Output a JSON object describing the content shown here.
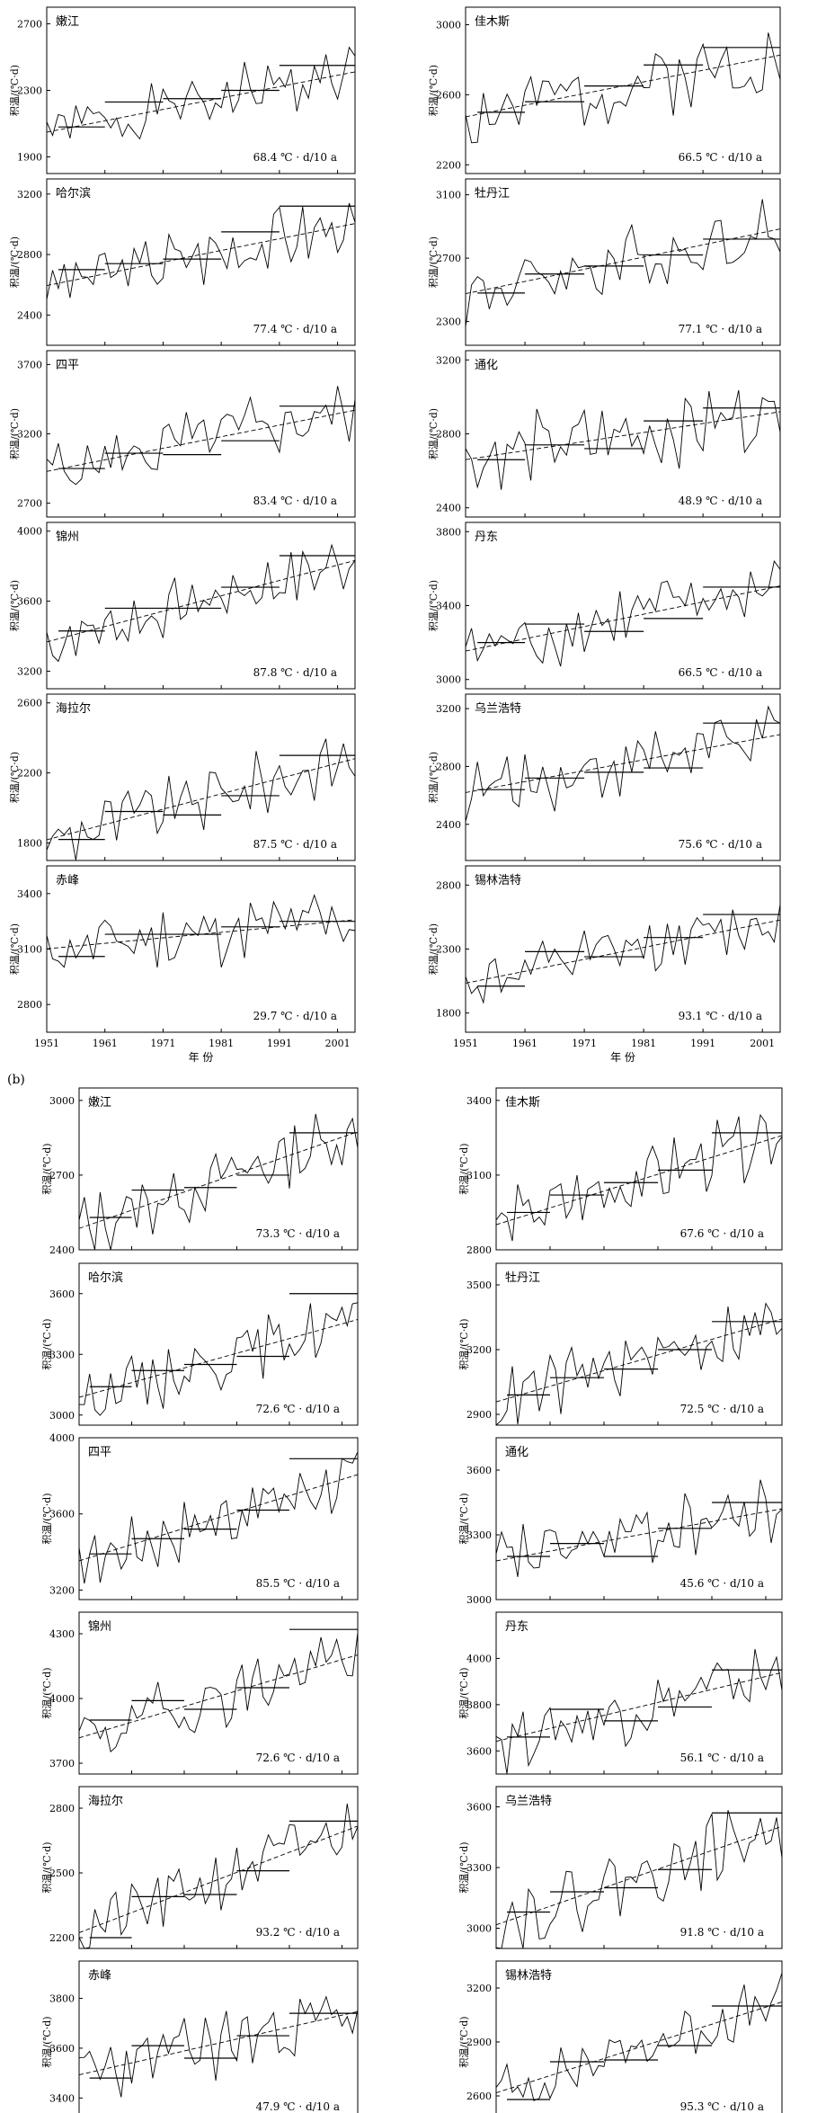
{
  "figure": {
    "panel_b_label": "(b)",
    "xlabel": "年 份",
    "ylabel": "积温/(℃·d)",
    "x_ticks": [
      1951,
      1961,
      1971,
      1981,
      1991,
      2001
    ]
  },
  "chart_data": [
    {
      "group": "a",
      "type": "line",
      "title": "嫩江",
      "trend_label": "68.4 ℃ · d/10 a",
      "ylim": [
        1800,
        2800
      ],
      "y_ticks": [
        1900,
        2300,
        2700
      ],
      "mean": 2230,
      "slope": 68.4,
      "amp": 160,
      "seed": 1,
      "decades": [
        2080,
        2230,
        2250,
        2300,
        2450
      ]
    },
    {
      "group": "a",
      "type": "line",
      "title": "佳木斯",
      "trend_label": "66.5 ℃ · d/10 a",
      "ylim": [
        2150,
        3100
      ],
      "y_ticks": [
        2200,
        2600,
        3000
      ],
      "mean": 2650,
      "slope": 66.5,
      "amp": 170,
      "seed": 2,
      "decades": [
        2500,
        2560,
        2650,
        2770,
        2870
      ]
    },
    {
      "group": "a",
      "type": "line",
      "title": "哈尔滨",
      "trend_label": "77.4 ℃ · d/10 a",
      "ylim": [
        2200,
        3300
      ],
      "y_ticks": [
        2400,
        2800,
        3200
      ],
      "mean": 2800,
      "slope": 77.4,
      "amp": 180,
      "seed": 3,
      "decades": [
        2700,
        2740,
        2770,
        2950,
        3120
      ]
    },
    {
      "group": "a",
      "type": "line",
      "title": "牡丹江",
      "trend_label": "77.1 ℃ · d/10 a",
      "ylim": [
        2150,
        3200
      ],
      "y_ticks": [
        2300,
        2700,
        3100
      ],
      "mean": 2680,
      "slope": 77.1,
      "amp": 180,
      "seed": 4,
      "decades": [
        2480,
        2600,
        2650,
        2720,
        2820
      ]
    },
    {
      "group": "a",
      "type": "line",
      "title": "四平",
      "trend_label": "83.4 ℃ · d/10 a",
      "ylim": [
        2600,
        3800
      ],
      "y_ticks": [
        2700,
        3200,
        3700
      ],
      "mean": 3150,
      "slope": 83.4,
      "amp": 200,
      "seed": 5,
      "decades": [
        2950,
        3060,
        3050,
        3150,
        3400
      ]
    },
    {
      "group": "a",
      "type": "line",
      "title": "通化",
      "trend_label": "48.9 ℃ · d/10 a",
      "ylim": [
        2350,
        3250
      ],
      "y_ticks": [
        2400,
        2800,
        3200
      ],
      "mean": 2790,
      "slope": 48.9,
      "amp": 170,
      "seed": 6,
      "decades": [
        2660,
        2740,
        2720,
        2870,
        2940
      ]
    },
    {
      "group": "a",
      "type": "line",
      "title": "锦州",
      "trend_label": "87.8 ℃ · d/10 a",
      "ylim": [
        3100,
        4050
      ],
      "y_ticks": [
        3200,
        3600,
        4000
      ],
      "mean": 3600,
      "slope": 87.8,
      "amp": 160,
      "seed": 7,
      "decades": [
        3430,
        3560,
        3560,
        3680,
        3860
      ]
    },
    {
      "group": "a",
      "type": "line",
      "title": "丹东",
      "trend_label": "66.5 ℃ · d/10 a",
      "ylim": [
        2950,
        3850
      ],
      "y_ticks": [
        3000,
        3400,
        3800
      ],
      "mean": 3330,
      "slope": 66.5,
      "amp": 160,
      "seed": 8,
      "decades": [
        3200,
        3300,
        3260,
        3330,
        3500
      ]
    },
    {
      "group": "a",
      "type": "line",
      "title": "海拉尔",
      "trend_label": "87.5 ℃ · d/10 a",
      "ylim": [
        1700,
        2650
      ],
      "y_ticks": [
        1800,
        2200,
        2600
      ],
      "mean": 2050,
      "slope": 87.5,
      "amp": 150,
      "seed": 9,
      "decades": [
        1820,
        1980,
        1960,
        2070,
        2300
      ]
    },
    {
      "group": "a",
      "type": "line",
      "title": "乌兰浩特",
      "trend_label": "75.6 ℃ · d/10 a",
      "ylim": [
        2150,
        3300
      ],
      "y_ticks": [
        2400,
        2800,
        3200
      ],
      "mean": 2820,
      "slope": 75.6,
      "amp": 190,
      "seed": 10,
      "decades": [
        2640,
        2720,
        2760,
        2790,
        3100
      ]
    },
    {
      "group": "a",
      "type": "line",
      "title": "赤峰",
      "trend_label": "29.7 ℃ · d/10 a",
      "ylim": [
        2650,
        3550
      ],
      "y_ticks": [
        2800,
        3100,
        3400
      ],
      "mean": 3180,
      "slope": 29.7,
      "amp": 160,
      "seed": 11,
      "decades": [
        3060,
        3180,
        3180,
        3220,
        3250
      ]
    },
    {
      "group": "a",
      "type": "line",
      "title": "锡林浩特",
      "trend_label": "93.1 ℃ · d/10 a",
      "ylim": [
        1650,
        2950
      ],
      "y_ticks": [
        1800,
        2300,
        2800
      ],
      "mean": 2280,
      "slope": 93.1,
      "amp": 180,
      "seed": 12,
      "decades": [
        2010,
        2280,
        2240,
        2390,
        2570
      ]
    },
    {
      "group": "b",
      "type": "line",
      "title": "嫩江",
      "trend_label": "73.3 ℃ · d/10 a",
      "ylim": [
        2400,
        3050
      ],
      "y_ticks": [
        2400,
        2700,
        3000
      ],
      "mean": 2680,
      "slope": 73.3,
      "amp": 110,
      "seed": 13,
      "decades": [
        2530,
        2640,
        2650,
        2700,
        2870
      ]
    },
    {
      "group": "b",
      "type": "line",
      "title": "佳木斯",
      "trend_label": "67.6 ℃ · d/10 a",
      "ylim": [
        2800,
        3450
      ],
      "y_ticks": [
        2800,
        3100,
        3400
      ],
      "mean": 3080,
      "slope": 67.6,
      "amp": 110,
      "seed": 14,
      "decades": [
        2950,
        3020,
        3070,
        3120,
        3270
      ]
    },
    {
      "group": "b",
      "type": "line",
      "title": "哈尔滨",
      "trend_label": "72.6 ℃ · d/10 a",
      "ylim": [
        2950,
        3750
      ],
      "y_ticks": [
        3000,
        3300,
        3600
      ],
      "mean": 3280,
      "slope": 72.6,
      "amp": 130,
      "seed": 15,
      "decades": [
        3140,
        3220,
        3250,
        3290,
        3600
      ]
    },
    {
      "group": "b",
      "type": "line",
      "title": "牡丹江",
      "trend_label": "72.5 ℃ · d/10 a",
      "ylim": [
        2850,
        3600
      ],
      "y_ticks": [
        2900,
        3200,
        3500
      ],
      "mean": 3150,
      "slope": 72.5,
      "amp": 120,
      "seed": 16,
      "decades": [
        2990,
        3070,
        3110,
        3200,
        3330
      ]
    },
    {
      "group": "b",
      "type": "line",
      "title": "四平",
      "trend_label": "85.5 ℃ · d/10 a",
      "ylim": [
        3150,
        4000
      ],
      "y_ticks": [
        3200,
        3600,
        4000
      ],
      "mean": 3580,
      "slope": 85.5,
      "amp": 140,
      "seed": 17,
      "decades": [
        3390,
        3470,
        3520,
        3620,
        3890
      ]
    },
    {
      "group": "b",
      "type": "line",
      "title": "通化",
      "trend_label": "45.6 ℃ · d/10 a",
      "ylim": [
        3000,
        3750
      ],
      "y_ticks": [
        3000,
        3300,
        3600
      ],
      "mean": 3300,
      "slope": 45.6,
      "amp": 130,
      "seed": 18,
      "decades": [
        3200,
        3260,
        3200,
        3330,
        3450
      ]
    },
    {
      "group": "b",
      "type": "line",
      "title": "锦州",
      "trend_label": "72.6 ℃ · d/10 a",
      "ylim": [
        3650,
        4400
      ],
      "y_ticks": [
        3700,
        4000,
        4300
      ],
      "mean": 4010,
      "slope": 72.6,
      "amp": 130,
      "seed": 19,
      "decades": [
        3900,
        3990,
        3950,
        4050,
        4320
      ]
    },
    {
      "group": "b",
      "type": "line",
      "title": "丹东",
      "trend_label": "56.1 ℃ · d/10 a",
      "ylim": [
        3500,
        4200
      ],
      "y_ticks": [
        3600,
        3800,
        4000
      ],
      "mean": 3790,
      "slope": 56.1,
      "amp": 120,
      "seed": 20,
      "decades": [
        3660,
        3780,
        3730,
        3790,
        3950
      ]
    },
    {
      "group": "b",
      "type": "line",
      "title": "海拉尔",
      "trend_label": "93.2 ℃ · d/10 a",
      "ylim": [
        2150,
        2900
      ],
      "y_ticks": [
        2200,
        2500,
        2800
      ],
      "mean": 2470,
      "slope": 93.2,
      "amp": 120,
      "seed": 21,
      "decades": [
        2200,
        2390,
        2400,
        2510,
        2740
      ]
    },
    {
      "group": "b",
      "type": "line",
      "title": "乌兰浩特",
      "trend_label": "91.8 ℃ · d/10 a",
      "ylim": [
        2900,
        3700
      ],
      "y_ticks": [
        3000,
        3300,
        3600
      ],
      "mean": 3260,
      "slope": 91.8,
      "amp": 140,
      "seed": 22,
      "decades": [
        3080,
        3180,
        3200,
        3290,
        3570
      ]
    },
    {
      "group": "b",
      "type": "line",
      "title": "赤峰",
      "trend_label": "47.9 ℃ · d/10 a",
      "ylim": [
        3300,
        3950
      ],
      "y_ticks": [
        3400,
        3600,
        3800
      ],
      "mean": 3620,
      "slope": 47.9,
      "amp": 120,
      "seed": 23,
      "decades": [
        3480,
        3610,
        3560,
        3650,
        3740
      ]
    },
    {
      "group": "b",
      "type": "line",
      "title": "锡林浩特",
      "trend_label": "95.3 ℃ · d/10 a",
      "ylim": [
        2450,
        3350
      ],
      "y_ticks": [
        2600,
        2900,
        3200
      ],
      "mean": 2870,
      "slope": 95.3,
      "amp": 130,
      "seed": 24,
      "decades": [
        2580,
        2790,
        2800,
        2880,
        3100
      ]
    }
  ]
}
